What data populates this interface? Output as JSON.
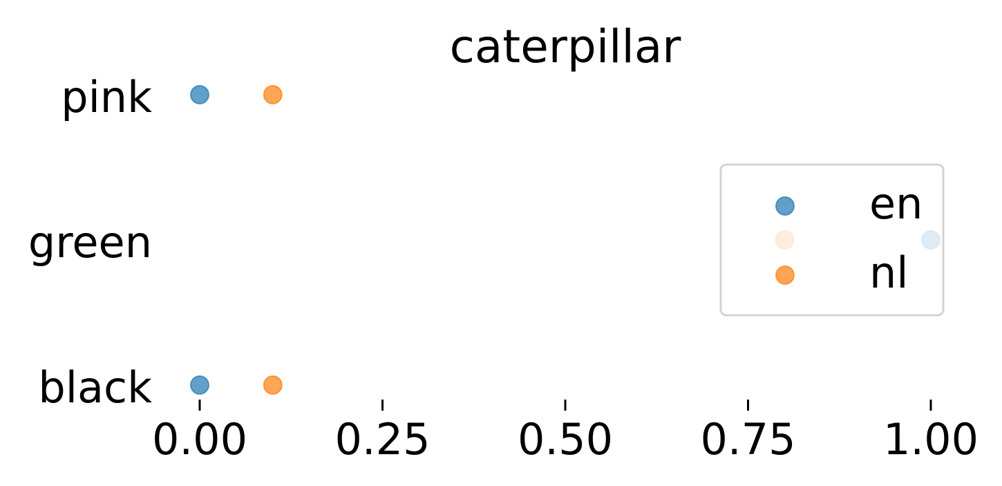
{
  "chart_data": {
    "type": "scatter",
    "title": "caterpillar",
    "xlabel": "",
    "ylabel": "",
    "categories": [
      "pink",
      "green",
      "black"
    ],
    "xlim": [
      0,
      1
    ],
    "xticks": [
      "0.00",
      "0.25",
      "0.50",
      "0.75",
      "1.00"
    ],
    "xtick_values": [
      0,
      0.25,
      0.5,
      0.75,
      1.0
    ],
    "grid": false,
    "legend_position": "center-right",
    "series": [
      {
        "name": "en",
        "color": "#1f77b4",
        "points": [
          {
            "category": "pink",
            "x": 0.0
          },
          {
            "category": "green",
            "x": 1.0
          },
          {
            "category": "black",
            "x": 0.0
          }
        ]
      },
      {
        "name": "nl",
        "color": "#ff7f0e",
        "points": [
          {
            "category": "pink",
            "x": 0.1
          },
          {
            "category": "green",
            "x": 0.8
          },
          {
            "category": "black",
            "x": 0.1
          }
        ]
      }
    ]
  }
}
